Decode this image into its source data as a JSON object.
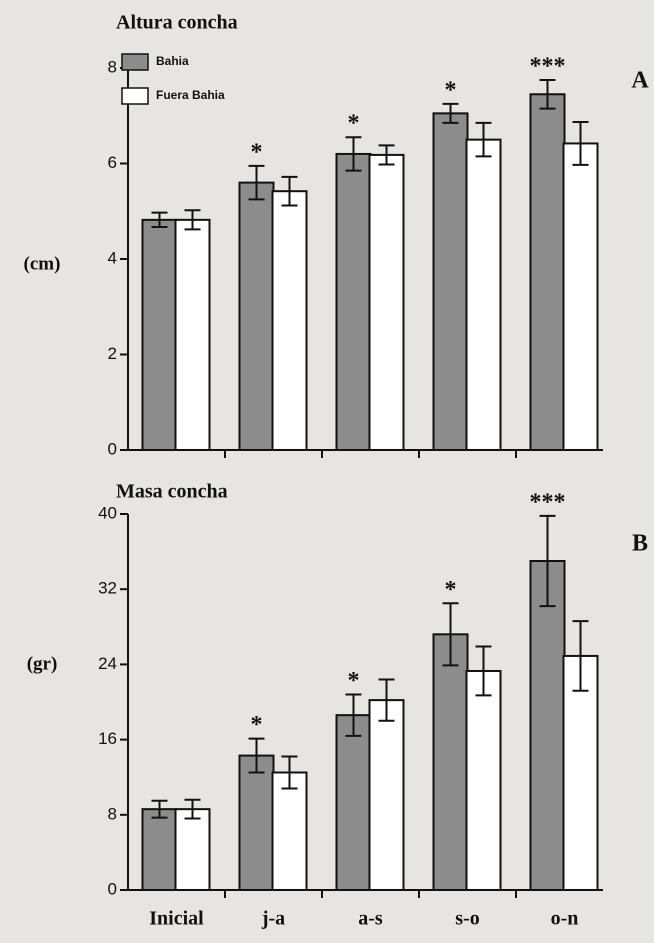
{
  "chart_data": [
    {
      "type": "bar",
      "title": "Altura concha",
      "ylabel": "(cm)",
      "panel": "A",
      "categories": [
        null,
        null,
        null,
        null,
        null
      ],
      "series": [
        {
          "name": "Bahia",
          "color": "#8c8c8c",
          "values": [
            4.82,
            5.6,
            6.2,
            7.05,
            7.45
          ],
          "errors": [
            0.15,
            0.35,
            0.35,
            0.2,
            0.3
          ]
        },
        {
          "name": "Fuera Bahia",
          "color": "#ffffff",
          "values": [
            4.82,
            5.42,
            6.18,
            6.5,
            6.42
          ],
          "errors": [
            0.2,
            0.3,
            0.2,
            0.35,
            0.45
          ]
        }
      ],
      "significance": [
        null,
        "*",
        "*",
        "*",
        "***"
      ],
      "ylim": [
        0,
        8
      ],
      "yticks": [
        0,
        2,
        4,
        6,
        8
      ],
      "legend": "upper left"
    },
    {
      "type": "bar",
      "title": "Masa concha",
      "ylabel": "(gr)",
      "panel": "B",
      "categories": [
        "Inicial",
        "j-a",
        "a-s",
        "s-o",
        "o-n"
      ],
      "series": [
        {
          "color": "#8c8c8c",
          "values": [
            8.6,
            14.3,
            18.6,
            27.2,
            35
          ],
          "errors": [
            0.9,
            1.8,
            2.2,
            3.3,
            4.8
          ]
        },
        {
          "color": "#ffffff",
          "values": [
            8.6,
            12.5,
            20.2,
            23.3,
            24.9
          ],
          "errors": [
            1.0,
            1.7,
            2.2,
            2.6,
            3.7
          ]
        }
      ],
      "significance": [
        null,
        "*",
        "*",
        "*",
        "***"
      ],
      "ylim": [
        0,
        40
      ],
      "yticks": [
        0,
        8,
        16,
        24,
        32,
        40
      ]
    }
  ]
}
